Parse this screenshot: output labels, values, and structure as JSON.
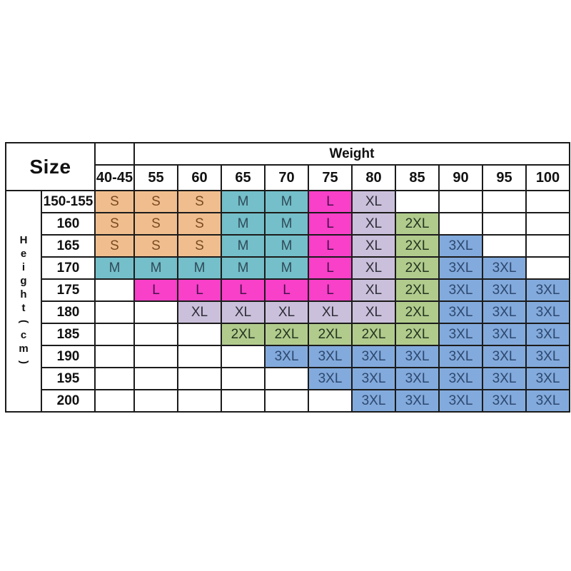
{
  "chart_data": {
    "type": "table",
    "title_corner": "Size",
    "x_axis_label": "Weight",
    "y_axis_label": "Height (cm)",
    "height_label_chars": [
      "H",
      "e",
      "i",
      "g",
      "h",
      "t",
      "(",
      "c",
      "m",
      ")"
    ],
    "columns": [
      "40-45",
      "55",
      "60",
      "65",
      "70",
      "75",
      "80",
      "85",
      "90",
      "95",
      "100"
    ],
    "rows": [
      {
        "height": "150-155",
        "cells": [
          "S",
          "S",
          "S",
          "M",
          "M",
          "L",
          "XL",
          "",
          "",
          "",
          ""
        ]
      },
      {
        "height": "160",
        "cells": [
          "S",
          "S",
          "S",
          "M",
          "M",
          "L",
          "XL",
          "2XL",
          "",
          "",
          ""
        ]
      },
      {
        "height": "165",
        "cells": [
          "S",
          "S",
          "S",
          "M",
          "M",
          "L",
          "XL",
          "2XL",
          "3XL",
          "",
          ""
        ]
      },
      {
        "height": "170",
        "cells": [
          "M",
          "M",
          "M",
          "M",
          "M",
          "L",
          "XL",
          "2XL",
          "3XL",
          "3XL",
          ""
        ]
      },
      {
        "height": "175",
        "cells": [
          "",
          "L",
          "L",
          "L",
          "L",
          "L",
          "XL",
          "2XL",
          "3XL",
          "3XL",
          "3XL"
        ]
      },
      {
        "height": "180",
        "cells": [
          "",
          "",
          "XL",
          "XL",
          "XL",
          "XL",
          "XL",
          "2XL",
          "3XL",
          "3XL",
          "3XL"
        ]
      },
      {
        "height": "185",
        "cells": [
          "",
          "",
          "",
          "2XL",
          "2XL",
          "2XL",
          "2XL",
          "2XL",
          "3XL",
          "3XL",
          "3XL"
        ]
      },
      {
        "height": "190",
        "cells": [
          "",
          "",
          "",
          "",
          "3XL",
          "3XL",
          "3XL",
          "3XL",
          "3XL",
          "3XL",
          "3XL"
        ]
      },
      {
        "height": "195",
        "cells": [
          "",
          "",
          "",
          "",
          "",
          "3XL",
          "3XL",
          "3XL",
          "3XL",
          "3XL",
          "3XL"
        ]
      },
      {
        "height": "200",
        "cells": [
          "",
          "",
          "",
          "",
          "",
          "",
          "3XL",
          "3XL",
          "3XL",
          "3XL",
          "3XL"
        ]
      }
    ],
    "size_colors": {
      "S": {
        "bg": "#F0BE8E",
        "fg": "#7A4A22"
      },
      "M": {
        "bg": "#74BFC9",
        "fg": "#2F4A58"
      },
      "L": {
        "bg": "#F840C8",
        "fg": "#46114C"
      },
      "XL": {
        "bg": "#CBC0DB",
        "fg": "#2E2E38"
      },
      "2XL": {
        "bg": "#B1CB8D",
        "fg": "#253520"
      },
      "3XL": {
        "bg": "#83AADC",
        "fg": "#2C486E"
      }
    },
    "border_color": "#1b1b1b",
    "background": "#ffffff",
    "grid": true,
    "legend_position": "none"
  }
}
